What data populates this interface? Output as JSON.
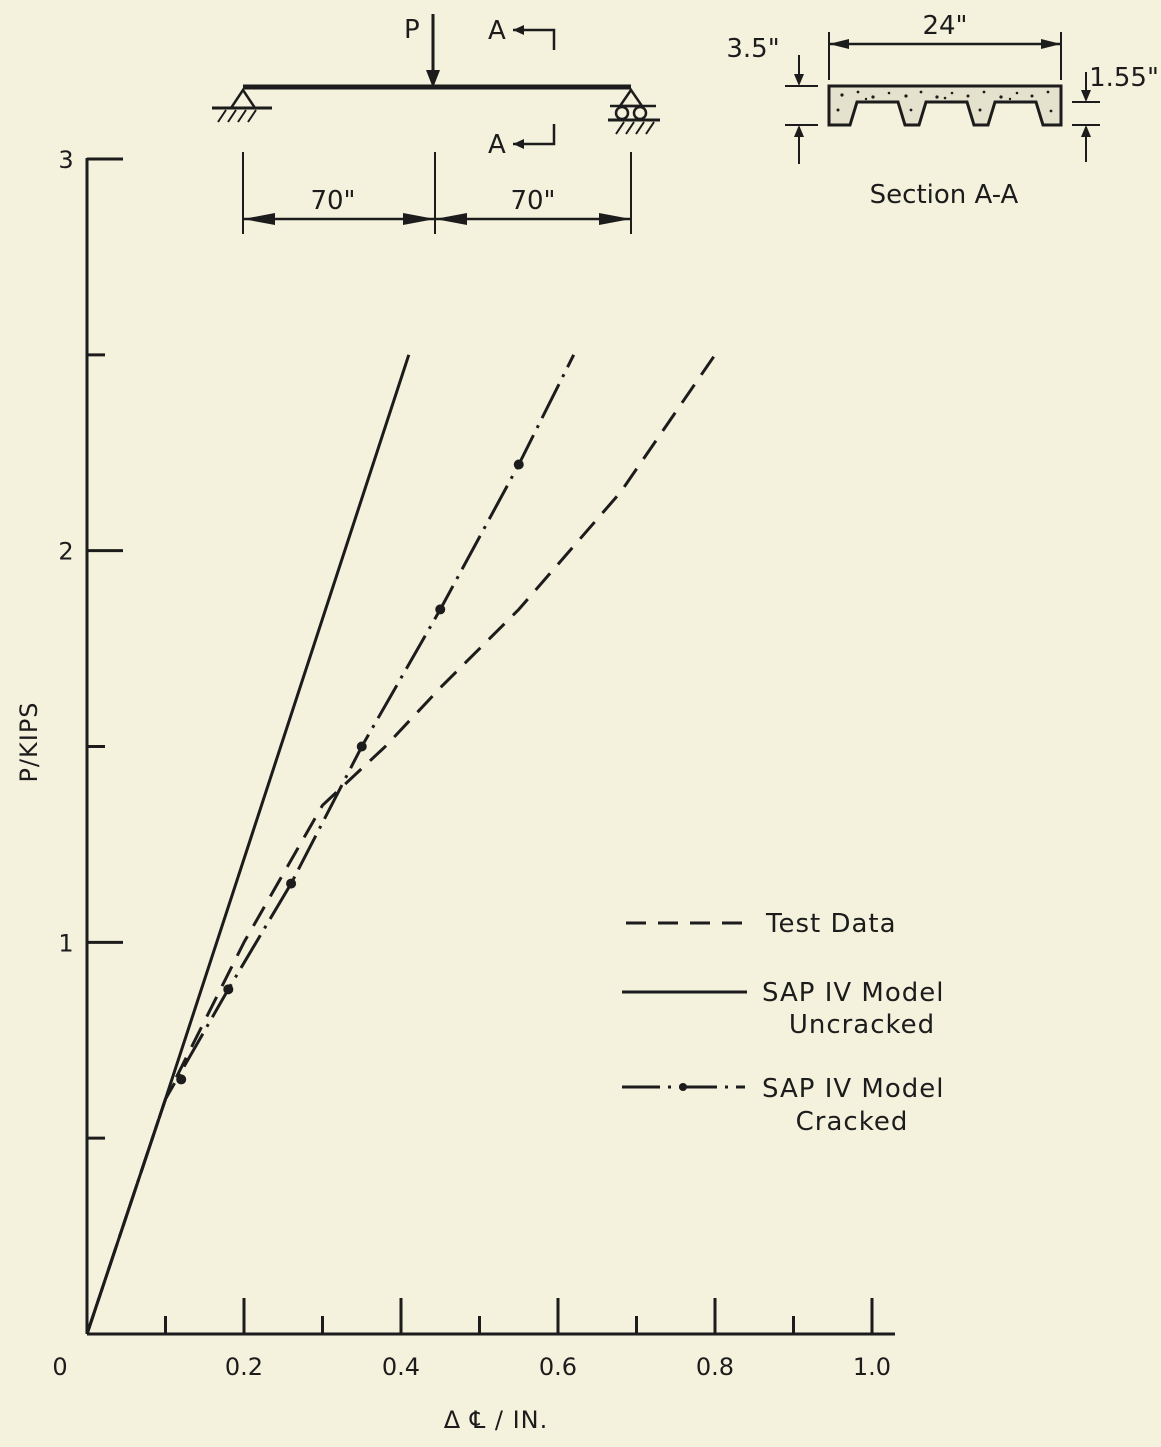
{
  "chart_data": {
    "type": "line",
    "xlabel": "Δ ℄ / IN.",
    "ylabel": "P/KIPS",
    "xlim": [
      0,
      1.0
    ],
    "ylim": [
      0,
      3
    ],
    "x_tick_labels": [
      "0",
      "0.2",
      "0.4",
      "0.6",
      "0.8",
      "1.0"
    ],
    "x_tick_values": [
      0,
      0.2,
      0.4,
      0.6,
      0.8,
      1.0
    ],
    "y_tick_labels": [
      "1",
      "2",
      "3"
    ],
    "y_tick_values": [
      1,
      2,
      3
    ],
    "x_minor_ticks": [
      0.1,
      0.3,
      0.5,
      0.7,
      0.9
    ],
    "y_minor_ticks": [
      0.5,
      1.5,
      2.5
    ],
    "series": [
      {
        "name": "Test Data",
        "style": "dashed",
        "points": [
          [
            0,
            0
          ],
          [
            0.1,
            0.6
          ],
          [
            0.2,
            1.0
          ],
          [
            0.3,
            1.35
          ],
          [
            0.38,
            1.5
          ],
          [
            0.45,
            1.65
          ],
          [
            0.55,
            1.85
          ],
          [
            0.68,
            2.15
          ],
          [
            0.8,
            2.5
          ]
        ]
      },
      {
        "name": "SAP IV Model Uncracked",
        "style": "solid",
        "points": [
          [
            0,
            0
          ],
          [
            0.1,
            0.6
          ],
          [
            0.41,
            2.5
          ]
        ]
      },
      {
        "name": "SAP IV Model Cracked",
        "style": "dash-dot",
        "points": [
          [
            0,
            0
          ],
          [
            0.1,
            0.6
          ],
          [
            0.18,
            0.88
          ],
          [
            0.26,
            1.15
          ],
          [
            0.35,
            1.5
          ],
          [
            0.45,
            1.85
          ],
          [
            0.55,
            2.22
          ],
          [
            0.62,
            2.5
          ]
        ],
        "markers": [
          [
            0.12,
            0.65
          ],
          [
            0.18,
            0.88
          ],
          [
            0.26,
            1.15
          ],
          [
            0.35,
            1.5
          ],
          [
            0.45,
            1.85
          ],
          [
            0.55,
            2.22
          ]
        ]
      }
    ],
    "legend": {
      "placement": "center-right",
      "entries": [
        {
          "label_lines": [
            "Test Data"
          ],
          "style": "dashed"
        },
        {
          "label_lines": [
            "SAP IV Model",
            "Uncracked"
          ],
          "style": "solid"
        },
        {
          "label_lines": [
            "SAP IV Model",
            "Cracked"
          ],
          "style": "dash-dot"
        }
      ]
    }
  },
  "beam_diagram": {
    "load_label": "P",
    "section_cut_labels": [
      "A",
      "A"
    ],
    "span_labels": [
      "70\"",
      "70\""
    ]
  },
  "section_diagram": {
    "width_label": "24\"",
    "depth_label": "3.5\"",
    "rib_label": "1.55\"",
    "caption": "Section A-A"
  }
}
